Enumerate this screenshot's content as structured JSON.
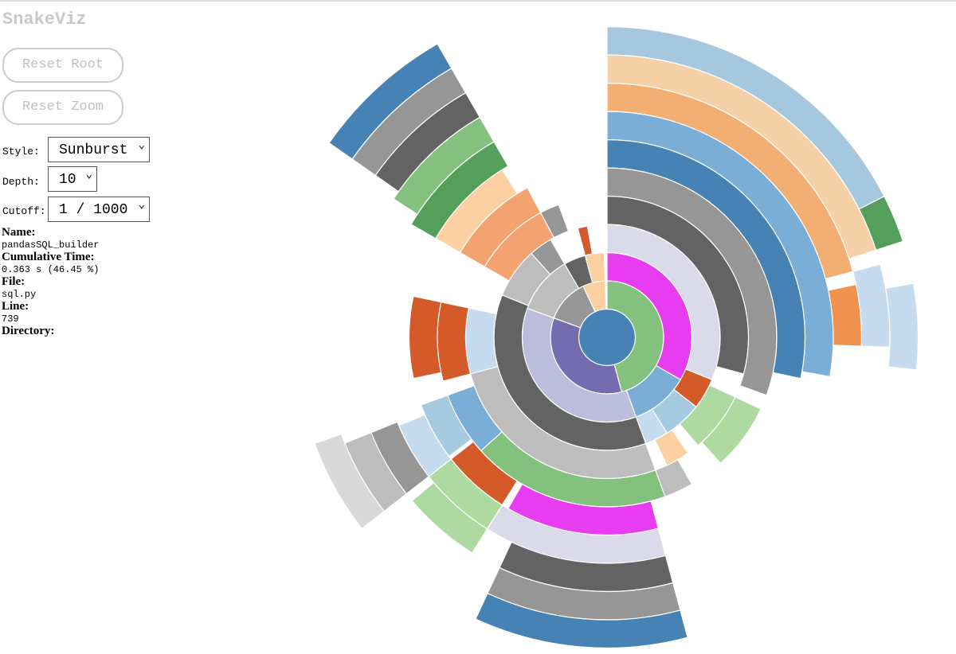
{
  "header": {
    "title": "SnakeViz"
  },
  "controls": {
    "reset_root": "Reset Root",
    "reset_zoom": "Reset Zoom",
    "style_label": "Style:",
    "style_value": "Sunburst",
    "depth_label": "Depth:",
    "depth_value": "10",
    "cutoff_label": "Cutoff:",
    "cutoff_value": "1 / 1000"
  },
  "info": {
    "name_label": "Name:",
    "name": "pandasSQL_builder",
    "time_label": "Cumulative Time:",
    "time": "0.363 s (46.45 %)",
    "file_label": "File:",
    "file": "sql.py",
    "line_label": "Line:",
    "line": "739",
    "dir_label": "Directory:"
  }
}
